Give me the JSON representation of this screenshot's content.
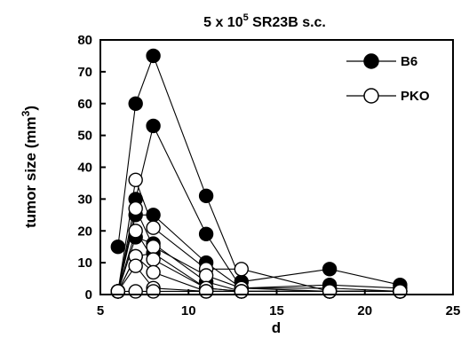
{
  "chart_data": {
    "type": "line",
    "title_main": "5 x 10",
    "title_sup": "5",
    "title_rest": " SR23B s.c.",
    "xlabel": "d",
    "ylabel_main": "tumor size (mm",
    "ylabel_sup": "3",
    "ylabel_end": ")",
    "xlim": [
      5,
      25
    ],
    "ylim": [
      0,
      80
    ],
    "xticks": [
      5,
      10,
      15,
      20,
      25
    ],
    "yticks": [
      0,
      10,
      20,
      30,
      40,
      50,
      60,
      70,
      80
    ],
    "grid": false,
    "legend_position": "top-right",
    "series": [
      {
        "group": "B6",
        "points": [
          [
            6,
            15
          ],
          [
            7,
            60
          ],
          [
            8,
            75
          ],
          [
            11,
            31
          ],
          [
            13,
            4
          ],
          [
            18,
            8
          ],
          [
            22,
            3
          ]
        ]
      },
      {
        "group": "B6",
        "points": [
          [
            6,
            1
          ],
          [
            7,
            30
          ],
          [
            8,
            53
          ],
          [
            11,
            19
          ],
          [
            13,
            2
          ],
          [
            18,
            3
          ],
          [
            22,
            2
          ]
        ]
      },
      {
        "group": "B6",
        "points": [
          [
            6,
            1
          ],
          [
            7,
            25
          ],
          [
            8,
            25
          ],
          [
            11,
            10
          ],
          [
            13,
            2
          ],
          [
            18,
            2
          ],
          [
            22,
            1
          ]
        ]
      },
      {
        "group": "B6",
        "points": [
          [
            6,
            1
          ],
          [
            7,
            18
          ],
          [
            8,
            16
          ],
          [
            11,
            4
          ],
          [
            13,
            1
          ],
          [
            18,
            1
          ],
          [
            22,
            1
          ]
        ]
      },
      {
        "group": "B6",
        "points": [
          [
            6,
            1
          ],
          [
            7,
            12
          ],
          [
            8,
            13
          ],
          [
            11,
            2
          ],
          [
            13,
            1
          ],
          [
            18,
            1
          ],
          [
            22,
            1
          ]
        ]
      },
      {
        "group": "PKO",
        "points": [
          [
            6,
            1
          ],
          [
            7,
            36
          ],
          [
            8,
            21
          ],
          [
            11,
            8
          ],
          [
            13,
            8
          ],
          [
            18,
            1
          ],
          [
            22,
            1
          ]
        ]
      },
      {
        "group": "PKO",
        "points": [
          [
            6,
            1
          ],
          [
            7,
            27
          ],
          [
            8,
            15
          ],
          [
            11,
            6
          ],
          [
            13,
            2
          ],
          [
            18,
            1
          ],
          [
            22,
            1
          ]
        ]
      },
      {
        "group": "PKO",
        "points": [
          [
            6,
            1
          ],
          [
            7,
            20
          ],
          [
            8,
            11
          ],
          [
            11,
            2
          ],
          [
            13,
            1
          ],
          [
            18,
            1
          ],
          [
            22,
            1
          ]
        ]
      },
      {
        "group": "PKO",
        "points": [
          [
            6,
            1
          ],
          [
            7,
            12
          ],
          [
            8,
            7
          ],
          [
            11,
            1
          ],
          [
            13,
            1
          ],
          [
            18,
            1
          ],
          [
            22,
            1
          ]
        ]
      },
      {
        "group": "PKO",
        "points": [
          [
            6,
            1
          ],
          [
            7,
            9
          ],
          [
            8,
            2
          ],
          [
            11,
            1
          ],
          [
            13,
            1
          ],
          [
            18,
            1
          ],
          [
            22,
            1
          ]
        ]
      },
      {
        "group": "PKO",
        "points": [
          [
            6,
            1
          ],
          [
            7,
            1
          ],
          [
            8,
            1
          ],
          [
            11,
            1
          ],
          [
            13,
            1
          ],
          [
            18,
            1
          ],
          [
            22,
            1
          ]
        ]
      }
    ],
    "legend": [
      {
        "name": "B6",
        "marker": "filled-circle",
        "fill": "#000000"
      },
      {
        "name": "PKO",
        "marker": "open-circle",
        "fill": "#ffffff"
      }
    ],
    "colors": {
      "line": "#000000",
      "filled": "#000000",
      "open": "#ffffff"
    }
  }
}
